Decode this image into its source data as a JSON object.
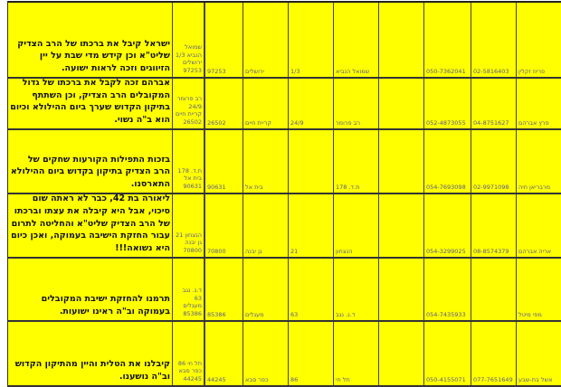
{
  "rows": [
    {
      "comment": "ישראל קיבל את ברכתו של הרב הצדיק שליט\"א וכן קידש מדי שבת על יין הזיווגים וזכה לראות ישועה.",
      "full_address": "שמואל הנביא 1/3 ירושלים 97253",
      "zip": "97253",
      "city": "ירושלים",
      "house": "1/3",
      "street": "שמואל הנביא",
      "extra": "",
      "mobile": "050-7362041",
      "phone": "02-5816403",
      "name": "פריוז זקלין"
    },
    {
      "comment": "אברהם זכה לקבל את ברכתו של גדול המקובלים הרב הצדיק, וכן השתתף בתיקון הקדוש שערך ביום ההילולא וכיום הוא ב\"ה נשוי.",
      "full_address": "רב פרומר 24/9 קריית חיים 26502",
      "zip": "26502",
      "city": "קריית חיים",
      "house": "24/9",
      "street": "רב פרומר",
      "extra": "",
      "mobile": "052-4873055",
      "phone": "04-8751627",
      "name": "פרץ אברהם"
    },
    {
      "comment": "בזכות התפילות הקורעות שחקים של הרב הצדיק בתיקון בקדוש ביום ההילולא התארסנו.",
      "full_address": "ת.ד. 178 בית אל 90631",
      "zip": "90631",
      "city": "בית אל",
      "house": "",
      "street": "ת.ד. 178",
      "extra": "",
      "mobile": "054-7693098",
      "phone": "02-9971098",
      "name": "מרבריאן חיה"
    },
    {
      "comment": "ליאורה בת 42, כבר לא ראתה שום סיכוי, אבל היא קיבלה את עצתו וברכתו של הרב הצדיק שליט\"א והחליטה לתרום עבור החזקת הישיבה בעמוקה, ואכן כיום היא נשואה!!!",
      "full_address": "הנצחון 21 גן יבנה 70800",
      "zip": "70800",
      "city": "גן יבנה",
      "house": "21",
      "street": "הנצחון",
      "extra": "",
      "mobile": "054-3299025",
      "phone": "08-8574379",
      "name": "אריה אברהם"
    },
    {
      "comment": "תרמנו להחזקת ישיבת המקובלים בעמוקה וב\"ה ראינו ישועות.",
      "full_address": "ד.נ. נגב 63 מעגלים 85386",
      "zip": "85386",
      "city": "מעגלים",
      "house": "63",
      "street": "ד.נ. נגב",
      "extra": "",
      "mobile": "054-7435933",
      "phone": "",
      "name": "מפי מיטל"
    },
    {
      "comment": "קיבלנו את הטלית והיין מהתיקון הקדוש וב\"ה נושענו.",
      "full_address": "תל חי 86 כפר סבא 44245",
      "zip": "44245",
      "city": "כפר סבא",
      "house": "86",
      "street": "תל חי",
      "extra": "",
      "mobile": "050-4155071",
      "phone": "077-7651649",
      "name": "אשל בת-שבע"
    }
  ],
  "colors": {
    "cell_background": "#ffff00",
    "grid": "#333333",
    "small_text": "#5a5a8a"
  }
}
